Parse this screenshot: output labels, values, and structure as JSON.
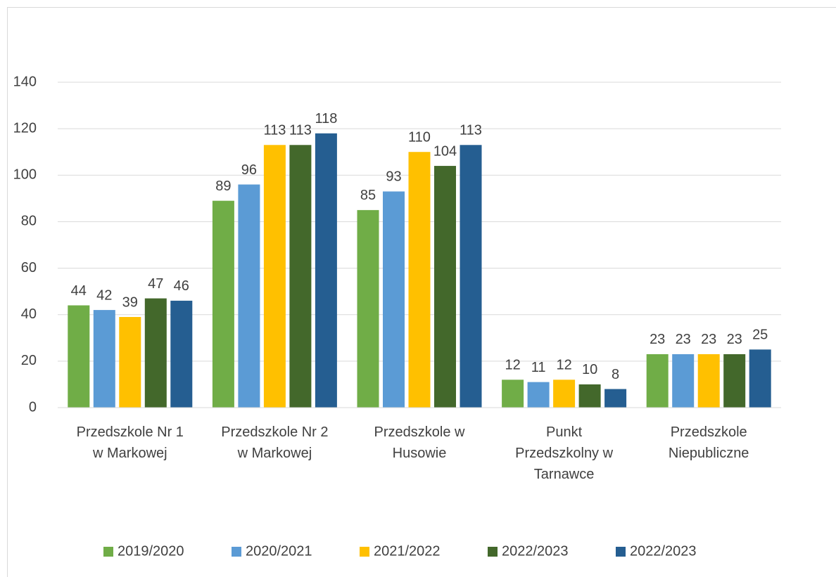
{
  "chart_data": {
    "type": "bar",
    "categories": [
      "Przedszkole Nr 1\nw Markowej",
      "Przedszkole Nr 2\nw Markowej",
      "Przedszkole w\nHusowie",
      "Punkt\nPrzedszkolny w\nTarnawce",
      "Przedszkole\nNiepubliczne"
    ],
    "series": [
      {
        "name": "2019/2020",
        "color": "#70ad47",
        "values": [
          44,
          89,
          85,
          12,
          23
        ]
      },
      {
        "name": "2020/2021",
        "color": "#5b9bd5",
        "values": [
          42,
          96,
          93,
          11,
          23
        ]
      },
      {
        "name": "2021/2022",
        "color": "#ffc000",
        "values": [
          39,
          113,
          110,
          12,
          23
        ]
      },
      {
        "name": "2022/2023",
        "color": "#43682b",
        "values": [
          47,
          113,
          104,
          10,
          23
        ]
      },
      {
        "name": "2022/2023",
        "color": "#255e91",
        "values": [
          46,
          118,
          113,
          8,
          25
        ]
      }
    ],
    "ylim": [
      0,
      140
    ],
    "yticks": [
      0,
      20,
      40,
      60,
      80,
      100,
      120,
      140
    ],
    "grid": true,
    "legend": "bottom"
  }
}
